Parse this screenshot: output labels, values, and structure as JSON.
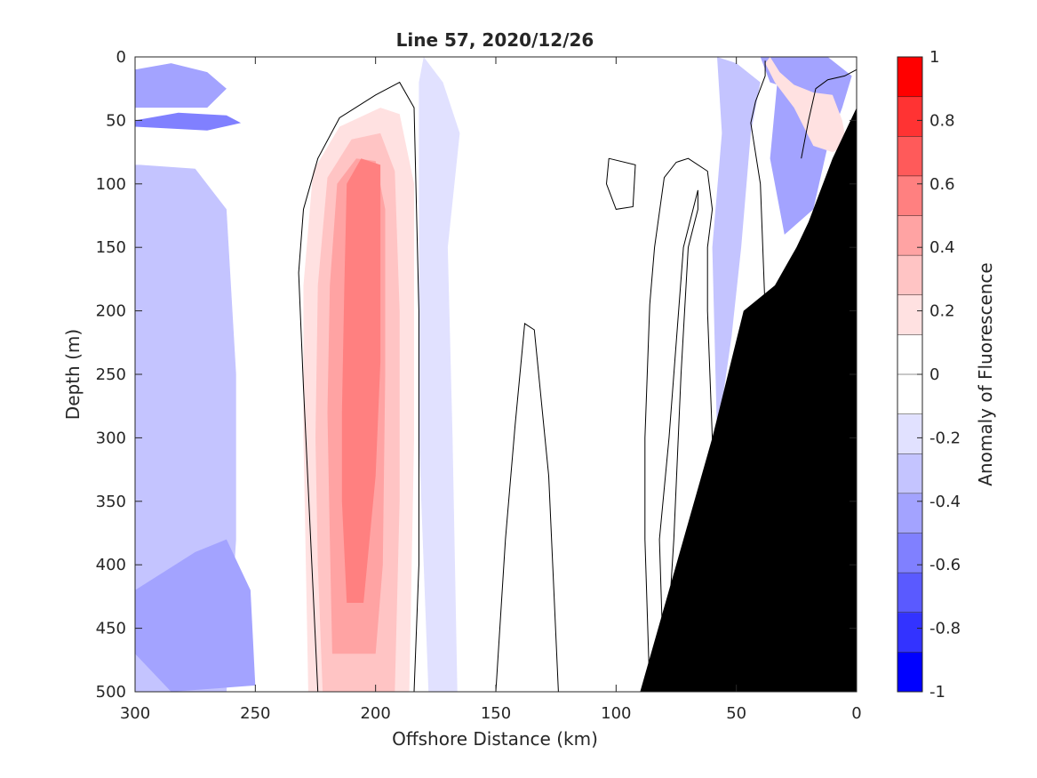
{
  "chart_data": {
    "type": "heatmap",
    "title": "Line 57, 2020/12/26",
    "xlabel": "Offshore Distance (km)",
    "ylabel": "Depth (m)",
    "colorbar_label": "Anomaly of Fluorescence",
    "xlim": [
      300,
      0
    ],
    "ylim": [
      0,
      500
    ],
    "x_reversed": true,
    "y_reversed": true,
    "xticks": [
      300,
      250,
      200,
      150,
      100,
      50,
      0
    ],
    "xtick_labels": [
      "300",
      "250",
      "200",
      "150",
      "100",
      "50",
      "0"
    ],
    "yticks": [
      0,
      50,
      100,
      150,
      200,
      250,
      300,
      350,
      400,
      450,
      500
    ],
    "ytick_labels": [
      "0",
      "50",
      "100",
      "150",
      "200",
      "250",
      "300",
      "350",
      "400",
      "450",
      "500"
    ],
    "clim": [
      -1,
      1
    ],
    "cbar_ticks": [
      1,
      0.8,
      0.6,
      0.4,
      0.2,
      0,
      -0.2,
      -0.4,
      -0.6,
      -0.8,
      -1
    ],
    "cbar_tick_labels": [
      "1",
      "0.8",
      "0.6",
      "0.4",
      "0.2",
      "0",
      "-0.2",
      "-0.4",
      "-0.6",
      "-0.8",
      "-1"
    ],
    "colormap": [
      "#0000ff",
      "#3333ff",
      "#5a5aff",
      "#8080ff",
      "#a3a3ff",
      "#c4c4ff",
      "#e1e1ff",
      "#ffffff",
      "#ffffff",
      "#ffe1e1",
      "#ffc4c4",
      "#ffa3a3",
      "#ff8080",
      "#ff5a5a",
      "#ff3333",
      "#ff0000"
    ],
    "grid": false,
    "bathymetry_color": "#000000",
    "bathymetry": [
      [
        0,
        40
      ],
      [
        10,
        80
      ],
      [
        20,
        130
      ],
      [
        25,
        150
      ],
      [
        34,
        180
      ],
      [
        47,
        200
      ],
      [
        60,
        300
      ],
      [
        90,
        500
      ],
      [
        0,
        500
      ]
    ],
    "zero_contours": [
      [
        [
          224,
          500
        ],
        [
          226,
          420
        ],
        [
          228,
          340
        ],
        [
          230,
          260
        ],
        [
          232,
          170
        ],
        [
          230,
          120
        ],
        [
          224,
          80
        ],
        [
          215,
          48
        ],
        [
          200,
          30
        ],
        [
          190,
          20
        ],
        [
          184,
          40
        ],
        [
          182,
          200
        ],
        [
          182,
          400
        ],
        [
          184,
          500
        ]
      ],
      [
        [
          150,
          500
        ],
        [
          146,
          380
        ],
        [
          142,
          290
        ],
        [
          138,
          210
        ],
        [
          134,
          215
        ],
        [
          128,
          330
        ],
        [
          124,
          500
        ]
      ],
      [
        [
          103,
          80
        ],
        [
          92,
          85
        ],
        [
          93,
          118
        ],
        [
          100,
          120
        ],
        [
          104,
          100
        ],
        [
          103,
          80
        ]
      ],
      [
        [
          86,
          500
        ],
        [
          88,
          380
        ],
        [
          88,
          300
        ],
        [
          86,
          195
        ],
        [
          84,
          150
        ],
        [
          80,
          95
        ],
        [
          75,
          83
        ],
        [
          70,
          80
        ],
        [
          62,
          90
        ],
        [
          60,
          120
        ],
        [
          62,
          150
        ],
        [
          62,
          200
        ],
        [
          60,
          300
        ],
        [
          60,
          380
        ],
        [
          58,
          500
        ]
      ],
      [
        [
          80,
          500
        ],
        [
          76,
          380
        ],
        [
          73,
          250
        ],
        [
          70,
          150
        ],
        [
          66,
          120
        ],
        [
          66,
          105
        ],
        [
          72,
          150
        ],
        [
          78,
          300
        ],
        [
          82,
          380
        ],
        [
          80,
          500
        ]
      ],
      [
        [
          46,
          500
        ],
        [
          40,
          400
        ],
        [
          38,
          300
        ],
        [
          38,
          200
        ],
        [
          40,
          100
        ],
        [
          44,
          52
        ],
        [
          42,
          35
        ],
        [
          38,
          15
        ],
        [
          38,
          3
        ]
      ],
      [
        [
          23,
          80
        ],
        [
          20,
          50
        ],
        [
          17,
          25
        ],
        [
          12,
          18
        ],
        [
          5,
          15
        ],
        [
          0,
          10
        ]
      ]
    ],
    "anomaly_field": [
      {
        "level": -0.3,
        "polygon": [
          [
            300,
            30
          ],
          [
            278,
            10
          ],
          [
            260,
            10
          ],
          [
            250,
            40
          ],
          [
            270,
            70
          ],
          [
            300,
            75
          ]
        ]
      },
      {
        "level": -0.1,
        "polygon": [
          [
            300,
            0
          ],
          [
            240,
            0
          ],
          [
            236,
            60
          ],
          [
            240,
            120
          ],
          [
            244,
            250
          ],
          [
            242,
            350
          ],
          [
            238,
            450
          ],
          [
            234,
            500
          ],
          [
            300,
            500
          ]
        ]
      },
      {
        "level": -0.3,
        "polygon": [
          [
            298,
            85
          ],
          [
            275,
            88
          ],
          [
            262,
            120
          ],
          [
            258,
            250
          ],
          [
            258,
            380
          ],
          [
            262,
            500
          ],
          [
            300,
            500
          ],
          [
            300,
            85
          ]
        ]
      },
      {
        "level": -0.4,
        "polygon": [
          [
            275,
            390
          ],
          [
            262,
            380
          ],
          [
            252,
            420
          ],
          [
            250,
            495
          ],
          [
            285,
            500
          ],
          [
            300,
            470
          ],
          [
            300,
            420
          ]
        ]
      },
      {
        "level": -0.5,
        "polygon": [
          [
            300,
            10
          ],
          [
            285,
            5
          ],
          [
            270,
            12
          ],
          [
            262,
            25
          ],
          [
            270,
            40
          ],
          [
            300,
            40
          ]
        ]
      },
      {
        "level": -0.6,
        "polygon": [
          [
            300,
            50
          ],
          [
            282,
            44
          ],
          [
            262,
            46
          ],
          [
            256,
            52
          ],
          [
            270,
            58
          ],
          [
            300,
            55
          ]
        ]
      },
      {
        "level": -0.2,
        "polygon": [
          [
            180,
            0
          ],
          [
            172,
            20
          ],
          [
            165,
            60
          ],
          [
            170,
            150
          ],
          [
            168,
            300
          ],
          [
            166,
            500
          ],
          [
            178,
            500
          ],
          [
            182,
            300
          ],
          [
            182,
            150
          ],
          [
            182,
            20
          ]
        ]
      },
      {
        "level": -0.1,
        "polygon": [
          [
            150,
            0
          ],
          [
            130,
            30
          ],
          [
            110,
            40
          ],
          [
            80,
            60
          ],
          [
            70,
            30
          ],
          [
            60,
            0
          ]
        ]
      },
      {
        "level": -0.3,
        "polygon": [
          [
            58,
            0
          ],
          [
            50,
            5
          ],
          [
            40,
            20
          ],
          [
            44,
            60
          ],
          [
            48,
            150
          ],
          [
            52,
            220
          ],
          [
            58,
            300
          ],
          [
            60,
            150
          ],
          [
            56,
            60
          ]
        ]
      },
      {
        "level": -0.5,
        "polygon": [
          [
            40,
            0
          ],
          [
            30,
            0
          ],
          [
            16,
            8
          ],
          [
            8,
            20
          ],
          [
            20,
            30
          ],
          [
            36,
            20
          ]
        ]
      },
      {
        "level": -0.4,
        "polygon": [
          [
            32,
            0
          ],
          [
            12,
            0
          ],
          [
            2,
            15
          ],
          [
            6,
            40
          ],
          [
            12,
            70
          ],
          [
            18,
            120
          ],
          [
            30,
            140
          ],
          [
            36,
            80
          ]
        ]
      },
      {
        "level": 0.2,
        "polygon": [
          [
            228,
            500
          ],
          [
            229,
            400
          ],
          [
            230,
            300
          ],
          [
            230,
            180
          ],
          [
            226,
            90
          ],
          [
            215,
            55
          ],
          [
            198,
            40
          ],
          [
            190,
            45
          ],
          [
            184,
            100
          ],
          [
            184,
            300
          ],
          [
            186,
            500
          ]
        ]
      },
      {
        "level": 0.3,
        "polygon": [
          [
            222,
            500
          ],
          [
            224,
            400
          ],
          [
            225,
            300
          ],
          [
            224,
            180
          ],
          [
            220,
            95
          ],
          [
            210,
            65
          ],
          [
            198,
            60
          ],
          [
            192,
            90
          ],
          [
            190,
            200
          ],
          [
            190,
            350
          ],
          [
            192,
            500
          ]
        ]
      },
      {
        "level": 0.4,
        "polygon": [
          [
            218,
            470
          ],
          [
            219,
            380
          ],
          [
            220,
            280
          ],
          [
            219,
            180
          ],
          [
            216,
            100
          ],
          [
            208,
            80
          ],
          [
            200,
            82
          ],
          [
            196,
            120
          ],
          [
            196,
            250
          ],
          [
            197,
            400
          ],
          [
            200,
            470
          ]
        ]
      },
      {
        "level": 0.5,
        "polygon": [
          [
            212,
            430
          ],
          [
            214,
            350
          ],
          [
            214,
            280
          ],
          [
            213,
            180
          ],
          [
            212,
            100
          ],
          [
            206,
            80
          ],
          [
            198,
            85
          ],
          [
            198,
            150
          ],
          [
            198,
            240
          ],
          [
            200,
            330
          ],
          [
            205,
            430
          ]
        ]
      },
      {
        "level": 0.2,
        "polygon": [
          [
            36,
            0
          ],
          [
            32,
            12
          ],
          [
            26,
            22
          ],
          [
            18,
            28
          ],
          [
            10,
            30
          ],
          [
            6,
            50
          ],
          [
            4,
            70
          ],
          [
            10,
            75
          ],
          [
            18,
            70
          ],
          [
            26,
            40
          ],
          [
            34,
            20
          ],
          [
            38,
            5
          ]
        ]
      }
    ]
  }
}
